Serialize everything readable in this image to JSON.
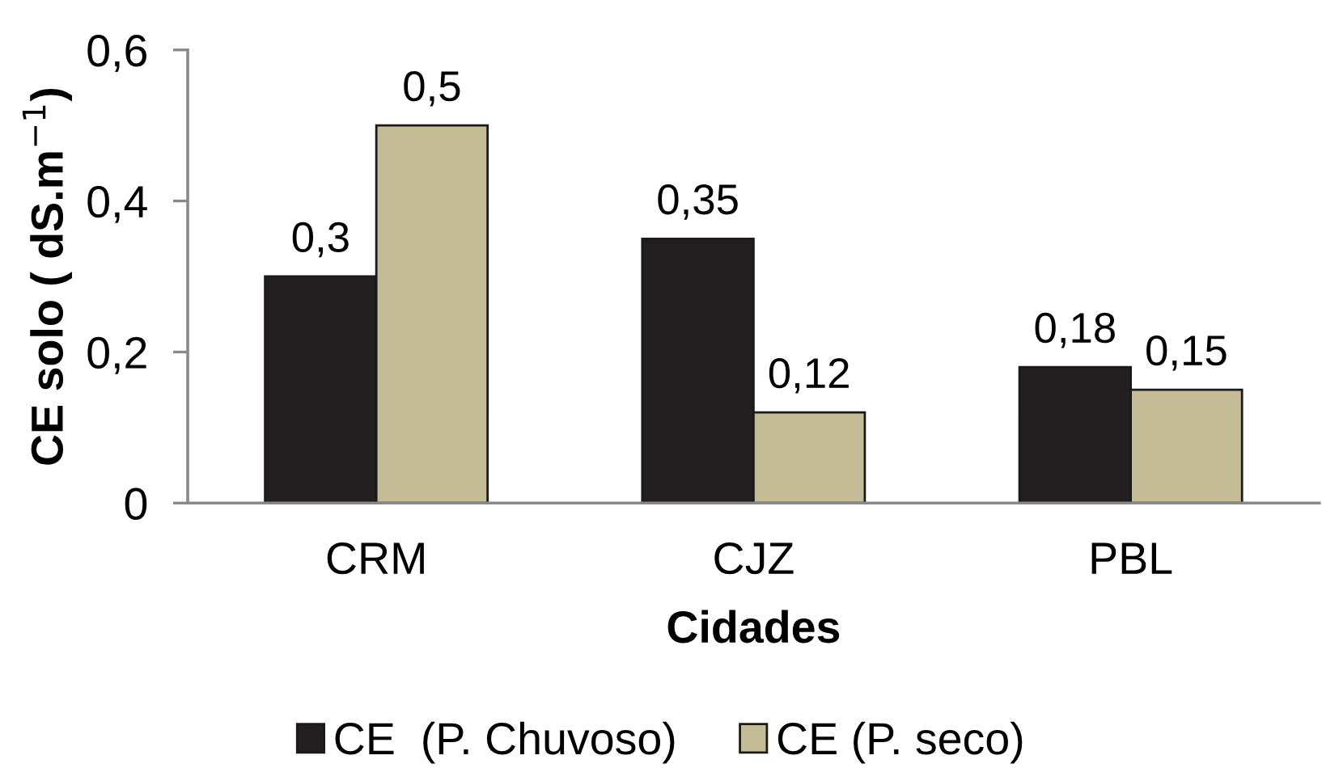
{
  "chart_data": {
    "type": "bar",
    "xlabel": "Cidades",
    "ylabel": "CE solo ( dS.m$^{−1}$)",
    "categories": [
      "CRM",
      "CJZ",
      "PBL"
    ],
    "series": [
      {
        "name": "CE  (P. Chuvoso)",
        "color": "#231f20",
        "values": [
          0.3,
          0.35,
          0.18
        ],
        "value_labels": [
          "0,3",
          "0,35",
          "0,18"
        ]
      },
      {
        "name": "CE (P. seco)",
        "color": "#c4bc96",
        "values": [
          0.5,
          0.12,
          0.15
        ],
        "value_labels": [
          "0,5",
          "0,12",
          "0,15"
        ]
      }
    ],
    "ylim": [
      0,
      0.6
    ],
    "yticks": [
      0,
      {
        "value": 0.2,
        "label": "0,2"
      },
      {
        "value": 0.4,
        "label": "0,4"
      },
      {
        "value": 0.6,
        "label": "0,6"
      }
    ],
    "grid": false,
    "legend": "bottom"
  }
}
